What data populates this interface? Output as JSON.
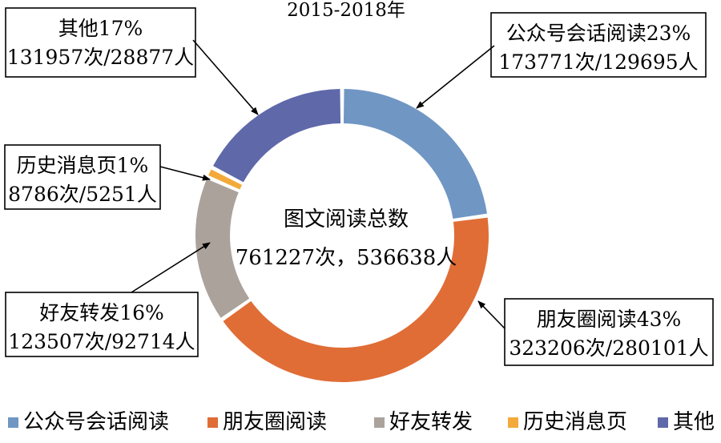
{
  "chart_data": {
    "type": "pie",
    "variant": "donut",
    "title": "2015-2018年",
    "center_label": {
      "line1": "图文阅读总数",
      "line2": "761227次，536638人"
    },
    "slices": [
      {
        "name": "公众号会话阅读",
        "percent_label": "23%",
        "count_label": "173771次/129695人",
        "views": 173771,
        "people": 129695,
        "percent": 23,
        "color": "#7096c3"
      },
      {
        "name": "朋友圈阅读",
        "percent_label": "43%",
        "count_label": "323206次/280101人",
        "views": 323206,
        "people": 280101,
        "percent": 43,
        "color": "#e06d36"
      },
      {
        "name": "好友转发",
        "percent_label": "16%",
        "count_label": "123507次/92714人",
        "views": 123507,
        "people": 92714,
        "percent": 16,
        "color": "#aba29c"
      },
      {
        "name": "历史消息页",
        "percent_label": "1%",
        "count_label": "8786次/5251人",
        "views": 8786,
        "people": 5251,
        "percent": 1,
        "color": "#f3aa3a"
      },
      {
        "name": "其他",
        "percent_label": "17%",
        "count_label": "131957次/28877人",
        "views": 131957,
        "people": 28877,
        "percent": 17,
        "color": "#5f68a9"
      }
    ],
    "legend": {
      "position": "bottom"
    }
  }
}
